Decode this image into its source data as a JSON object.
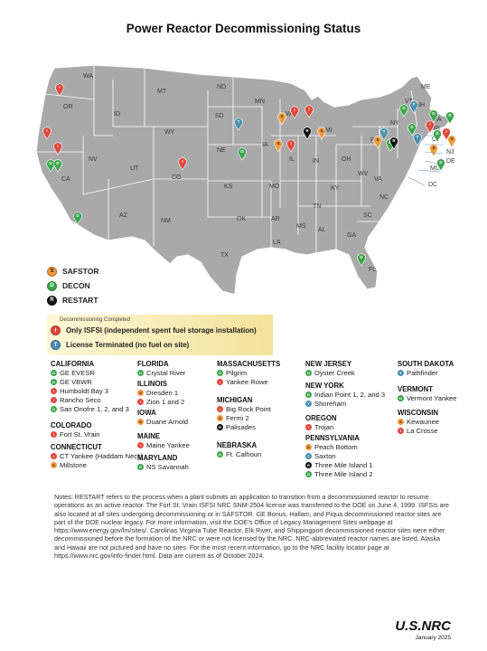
{
  "title": "Power Reactor Decommissioning Status",
  "colors": {
    "SAFSTOR": "#f39a3c",
    "DECON": "#3aa64a",
    "RESTART": "#111111",
    "ISFSI": "#e2483e",
    "TERMINATED": "#4a8fb0",
    "map_fill": "#a9a9a9",
    "map_border": "#ffffff"
  },
  "state_labels": [
    "WA",
    "OR",
    "CA",
    "NV",
    "ID",
    "MT",
    "WY",
    "UT",
    "CO",
    "AZ",
    "NM",
    "ND",
    "SD",
    "NE",
    "KS",
    "OK",
    "TX",
    "MN",
    "IA",
    "MO",
    "AR",
    "LA",
    "WI",
    "IL",
    "MS",
    "AL",
    "TN",
    "KY",
    "IN",
    "OH",
    "MI",
    "GA",
    "FL",
    "SC",
    "NC",
    "VA",
    "WV",
    "PA",
    "NY",
    "ME",
    "VT",
    "NH",
    "MA",
    "RI",
    "CT",
    "NJ",
    "DE",
    "MD",
    "DC"
  ],
  "legend": [
    {
      "code": "S",
      "label": "SAFSTOR",
      "color": "#f39a3c"
    },
    {
      "code": "D",
      "label": "DECON",
      "color": "#3aa64a"
    },
    {
      "code": "R",
      "label": "RESTART",
      "color": "#111111"
    }
  ],
  "completed_box": {
    "caption": "Decommissioning Completed",
    "isfsi_label": "Only ISFSI (independent spent fuel storage installation)",
    "terminated_label": "License Terminated (no fuel on site)"
  },
  "sites": {
    "california": {
      "state": "CALIFORNIA",
      "items": [
        {
          "name": "GE EVESR",
          "status": "D"
        },
        {
          "name": "GE VBWR",
          "status": "D"
        },
        {
          "name": "Humboldt Bay 3",
          "status": "I"
        },
        {
          "name": "Rancho Seco",
          "status": "I"
        },
        {
          "name": "San Onofre 1, 2, and 3",
          "status": "D"
        }
      ]
    },
    "colorado": {
      "state": "COLORADO",
      "items": [
        {
          "name": "Fort St. Vrain",
          "status": "I"
        }
      ]
    },
    "connecticut": {
      "state": "CONNECTICUT",
      "items": [
        {
          "name": "CT Yankee (Haddam Neck)",
          "status": "I"
        },
        {
          "name": "Millstone",
          "status": "S"
        }
      ]
    },
    "florida": {
      "state": "FLORIDA",
      "items": [
        {
          "name": "Crystal River",
          "status": "D"
        }
      ]
    },
    "illinois": {
      "state": "ILLINOIS",
      "items": [
        {
          "name": "Dresden 1",
          "status": "S"
        },
        {
          "name": "Zion 1 and 2",
          "status": "I"
        }
      ]
    },
    "iowa": {
      "state": "IOWA",
      "items": [
        {
          "name": "Duane Arnold",
          "status": "S"
        }
      ]
    },
    "maine": {
      "state": "MAINE",
      "items": [
        {
          "name": "Maine Yankee",
          "status": "I"
        }
      ]
    },
    "maryland": {
      "state": "MARYLAND",
      "items": [
        {
          "name": "NS Savannah",
          "status": "D"
        }
      ]
    },
    "massachusetts": {
      "state": "MASSACHUSETTS",
      "items": [
        {
          "name": "Pilgrim",
          "status": "D"
        },
        {
          "name": "Yankee Rowe",
          "status": "I"
        }
      ]
    },
    "michigan": {
      "state": "MICHIGAN",
      "items": [
        {
          "name": "Big Rock Point",
          "status": "I"
        },
        {
          "name": "Fermi 2",
          "status": "S"
        },
        {
          "name": "Palisades",
          "status": "R"
        }
      ]
    },
    "nebraska": {
      "state": "NEBRASKA",
      "items": [
        {
          "name": "Ft. Calhoun",
          "status": "D"
        }
      ]
    },
    "new_jersey": {
      "state": "NEW JERSEY",
      "items": [
        {
          "name": "Oyster Creek",
          "status": "D"
        }
      ]
    },
    "new_york": {
      "state": "NEW YORK",
      "items": [
        {
          "name": "Indian Point 1, 2, and 3",
          "status": "D"
        },
        {
          "name": "Shoreham",
          "status": "T"
        }
      ]
    },
    "oregon": {
      "state": "OREGON",
      "items": [
        {
          "name": "Trojan",
          "status": "I"
        }
      ]
    },
    "pennsylvania": {
      "state": "PENNSYLVANIA",
      "items": [
        {
          "name": "Peach Bottom",
          "status": "S"
        },
        {
          "name": "Saxton",
          "status": "T"
        },
        {
          "name": "Three Mile Island 1",
          "status": "R"
        },
        {
          "name": "Three Mile Island 2",
          "status": "D"
        }
      ]
    },
    "south_dakota": {
      "state": "SOUTH DAKOTA",
      "items": [
        {
          "name": "Pathfinder",
          "status": "T"
        }
      ]
    },
    "vermont": {
      "state": "VERMONT",
      "items": [
        {
          "name": "Vermont Yankee",
          "status": "D"
        }
      ]
    },
    "wisconsin": {
      "state": "WISCONSIN",
      "items": [
        {
          "name": "Kewaunee",
          "status": "S"
        },
        {
          "name": "La Crosse",
          "status": "I"
        }
      ]
    }
  },
  "notes": "Notes: RESTART refers to the process when a plant submits an application to transition from a decommissioned reactor to resume operations as an active reactor. The Fort St. Vrain ISFSI NRC SNM-2504 license was transferred to the DOE on June 4, 1999. ISFSIs are also located at all sites undergoing decommissioning or in SAFSTOR. GE Bonus, Hallam, and Piqua decommissioned reactor sites are part of the DOE nuclear legacy. For more information, visit the DOE’s Office of Legacy Management Sites webpage at https://www.energy.gov/lm/sites/. Carolinas Virginia Tube Reactor, Elk River, and Shippingport decommissioned reactor sites were either decommissioned before the formation of the NRC or were not licensed by the NRC. NRC-abbreviated reactor names are listed. Alaska and Hawaii are not pictured and have no sites. For the most recent information, go to the NRC facility locator page at https://www.nrc.gov/info-finder.html. Data are current as of October 2024.",
  "logo": "U.S.NRC",
  "logo_date": "January 2025"
}
